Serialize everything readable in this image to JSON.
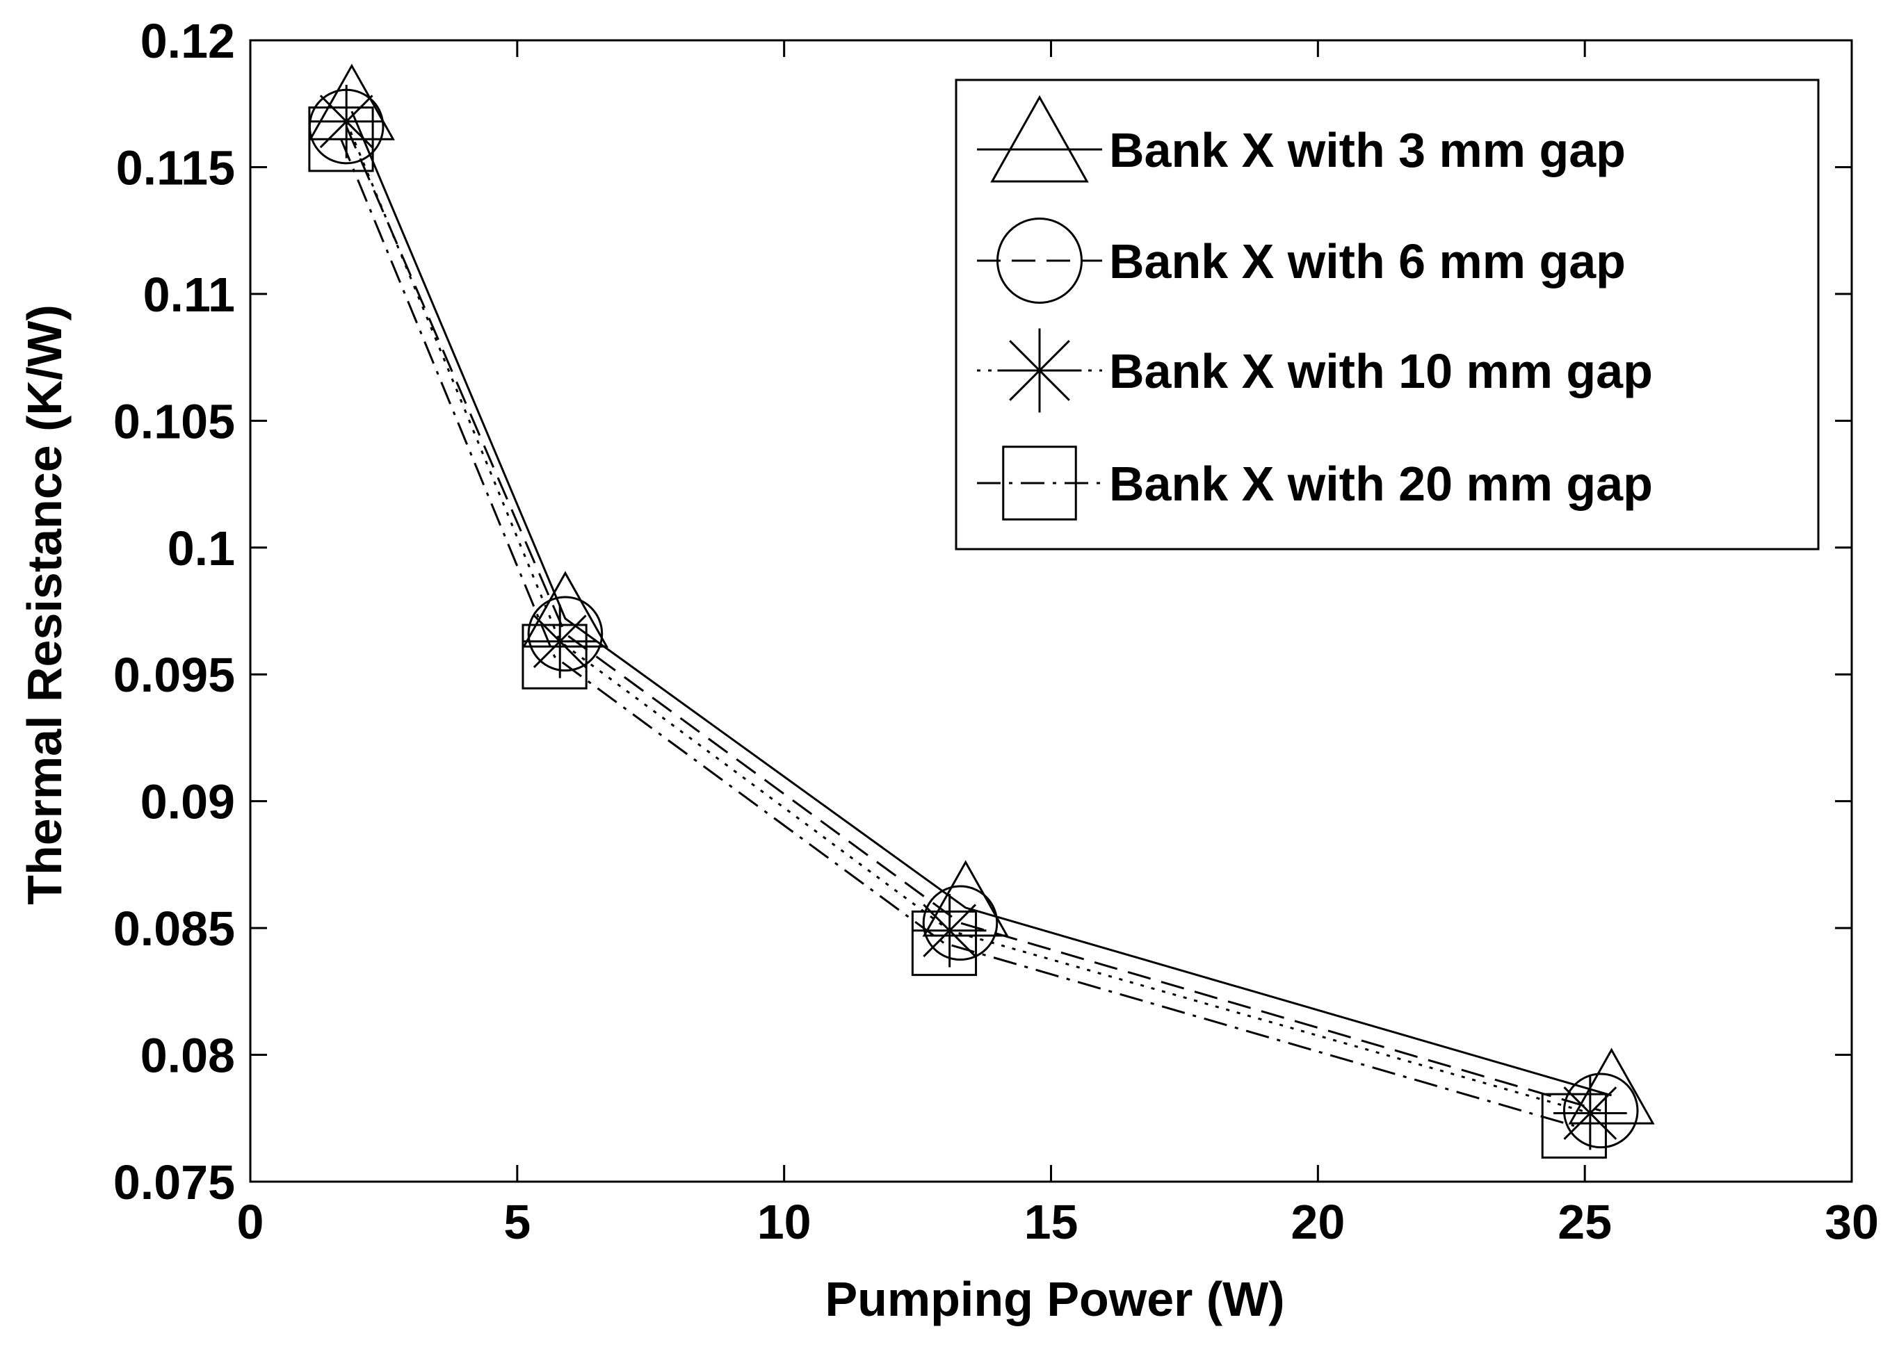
{
  "chart_data": {
    "type": "line",
    "title": "",
    "xlabel": "Pumping Power (W)",
    "ylabel": "Thermal Resistance (K/W)",
    "xlim": [
      0,
      30
    ],
    "ylim": [
      0.075,
      0.12
    ],
    "xticks": [
      0,
      5,
      10,
      15,
      20,
      25,
      30
    ],
    "xtick_labels": [
      "0",
      "5",
      "10",
      "15",
      "20",
      "25",
      "30"
    ],
    "yticks": [
      0.075,
      0.08,
      0.085,
      0.09,
      0.095,
      0.1,
      0.105,
      0.11,
      0.115,
      0.12
    ],
    "ytick_labels": [
      "0.075",
      "0.08",
      "0.085",
      "0.09",
      "0.095",
      "0.1",
      "0.105",
      "0.11",
      "0.115",
      "0.12"
    ],
    "grid": false,
    "legend_position": "top-right",
    "series": [
      {
        "name": "Bank X with 3 mm gap",
        "marker": "triangle",
        "line_style": "solid",
        "x": [
          1.9,
          5.9,
          13.4,
          25.5
        ],
        "y": [
          0.1172,
          0.0972,
          0.0858,
          0.0784
        ]
      },
      {
        "name": "Bank X with 6 mm gap",
        "marker": "circle",
        "line_style": "dashed",
        "x": [
          1.8,
          5.9,
          13.3,
          25.3
        ],
        "y": [
          0.1166,
          0.0966,
          0.0852,
          0.0778
        ]
      },
      {
        "name": "Bank X with 10 mm gap",
        "marker": "star",
        "line_style": "dotted",
        "x": [
          1.8,
          5.8,
          13.1,
          25.1
        ],
        "y": [
          0.1168,
          0.0963,
          0.0849,
          0.0777
        ]
      },
      {
        "name": "Bank X with 20 mm gap",
        "marker": "square",
        "line_style": "dashdot",
        "x": [
          1.7,
          5.7,
          13.0,
          24.8
        ],
        "y": [
          0.1161,
          0.0957,
          0.0844,
          0.0772
        ]
      }
    ]
  },
  "colors": {
    "line": "#000000",
    "background": "#ffffff"
  }
}
